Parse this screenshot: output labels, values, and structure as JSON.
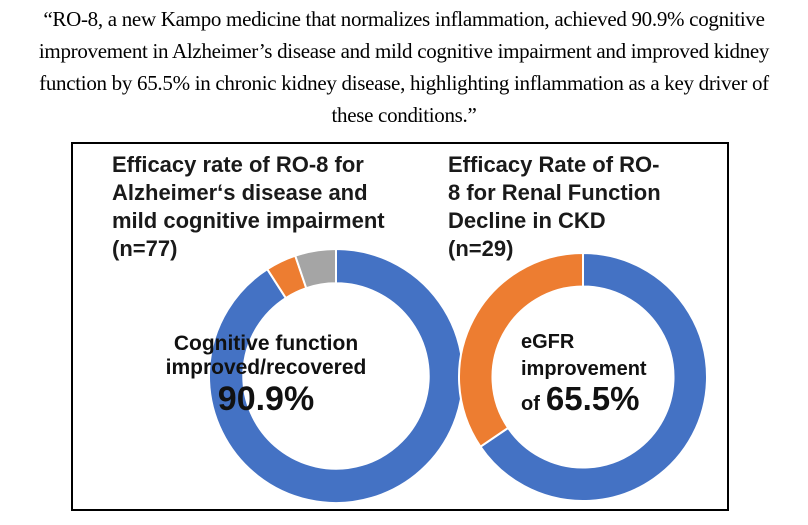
{
  "quote": {
    "lines": [
      "“RO-8, a new Kampo medicine that normalizes inflammation, achieved 90.9% cognitive",
      "improvement in Alzheimer’s disease and mild cognitive impairment and improved kidney",
      "function by 65.5% in chronic kidney disease, highlighting inflammation as a key driver of",
      "these conditions.”"
    ]
  },
  "figure": {
    "left_chart": {
      "title_lines": [
        "Efficacy rate of RO-8 for",
        "Alzheimer‘s disease and",
        "mild cognitive impairment",
        "(n=77)"
      ],
      "center_line1": "Cognitive function",
      "center_line2": "improved/recovered",
      "center_value": "90.9%"
    },
    "right_chart": {
      "title_lines": [
        "Efficacy Rate of RO-",
        "8 for Renal Function",
        "Decline in CKD",
        "(n=29)"
      ],
      "center_line1": "eGFR",
      "center_line2": "improvement",
      "center_prefix": "of",
      "center_value": "65.5%"
    }
  },
  "chart_data": [
    {
      "type": "pie",
      "subtype": "donut",
      "title": "Efficacy rate of RO-8 for Alzheimer‘s disease and mild cognitive impairment (n=77)",
      "n": 77,
      "start_angle_deg": 0,
      "direction": "clockwise",
      "hole_ratio": 0.73,
      "center_label": "Cognitive function improved/recovered 90.9%",
      "slices": [
        {
          "label": "Cognitive function improved/recovered",
          "value_pct": 90.9,
          "color": "#4472C4"
        },
        {
          "value_pct": 3.9,
          "color": "#ED7D31"
        },
        {
          "value_pct": 5.2,
          "color": "#A5A5A5"
        }
      ]
    },
    {
      "type": "pie",
      "subtype": "donut",
      "title": "Efficacy Rate of RO-8 for Renal Function Decline in CKD (n=29)",
      "n": 29,
      "start_angle_deg": 0,
      "direction": "clockwise",
      "hole_ratio": 0.73,
      "center_label": "eGFR improvement of 65.5%",
      "slices": [
        {
          "label": "eGFR improvement",
          "value_pct": 65.5,
          "color": "#4472C4"
        },
        {
          "value_pct": 34.5,
          "color": "#ED7D31"
        }
      ]
    }
  ],
  "colors": {
    "blue": "#4472C4",
    "orange": "#ED7D31",
    "gray": "#A5A5A5",
    "border": "#000000",
    "background": "#FFFFFF",
    "text": "#000000"
  }
}
